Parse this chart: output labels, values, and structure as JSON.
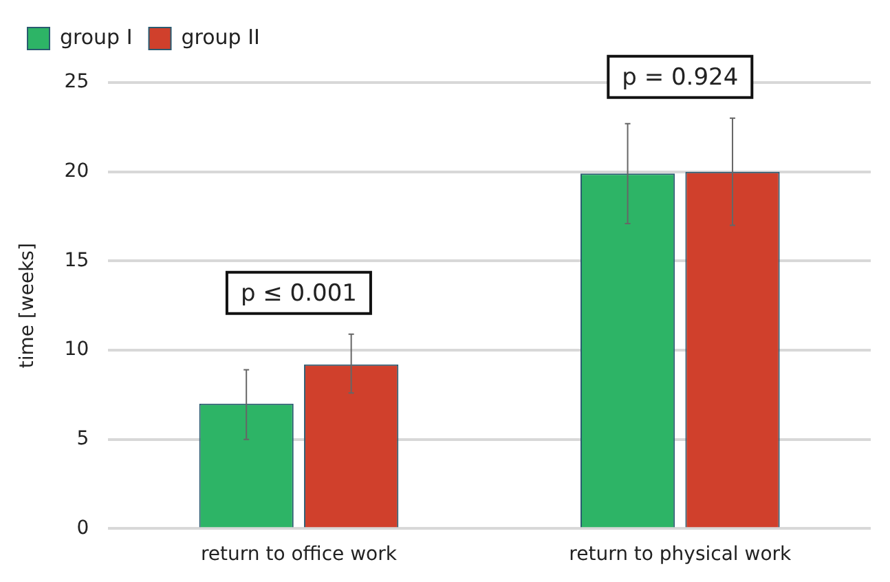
{
  "chart_data": {
    "type": "bar",
    "ylabel": "time [weeks]",
    "categories": [
      "return to office work",
      "return to physical work"
    ],
    "series": [
      {
        "name": "group I",
        "color": "#2db466",
        "values": [
          7.0,
          19.9
        ],
        "errors": [
          [
            5.0,
            8.9
          ],
          [
            17.1,
            22.7
          ]
        ]
      },
      {
        "name": "group II",
        "color": "#d0402c",
        "values": [
          9.2,
          20.0
        ],
        "errors": [
          [
            7.6,
            10.9
          ],
          [
            17.0,
            23.0
          ]
        ]
      }
    ],
    "annotations": [
      "p ≤ 0.001",
      "p = 0.924"
    ],
    "ylim": [
      0,
      25
    ],
    "yticks": [
      0,
      5,
      10,
      15,
      20,
      25
    ],
    "grid": "y",
    "legend": "top left"
  }
}
